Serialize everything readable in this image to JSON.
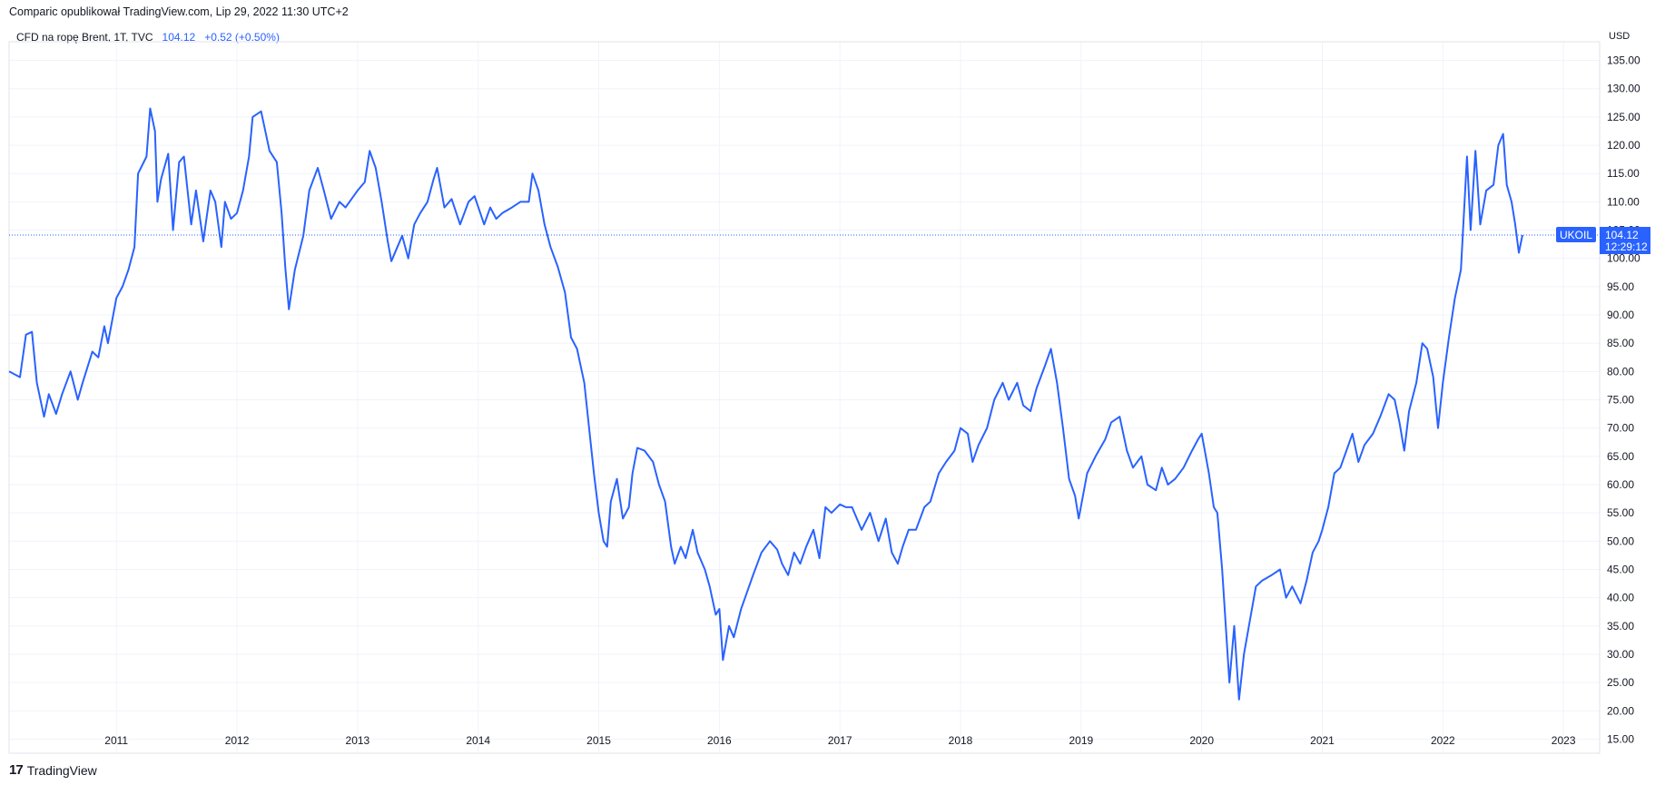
{
  "header": {
    "published": "Comparic opublikował TradingView.com, Lip 29, 2022 11:30 UTC+2",
    "symbol": "CFD na ropę Brent, 1T, TVC",
    "last": "104.12",
    "change": "+0.52 (+0.50%)",
    "currency": "USD"
  },
  "tag": {
    "symbol": "UKOIL",
    "price": "104.12",
    "countdown": "12:29:12"
  },
  "footer": {
    "brand": "TradingView",
    "icon": "tradingview-logo-icon"
  },
  "colors": {
    "line": "#2962ff",
    "grid": "#f0f3fa",
    "tag_bg": "#2962ff",
    "text": "#131722"
  },
  "chart_data": {
    "type": "line",
    "series_color": "#2962ff",
    "xlim": [
      2010.11,
      2023.3
    ],
    "ylim": [
      12.5,
      138.3
    ],
    "x_ticks": [
      "2011",
      "2012",
      "2013",
      "2014",
      "2015",
      "2016",
      "2017",
      "2018",
      "2019",
      "2020",
      "2021",
      "2022",
      "2023"
    ],
    "y_ticks": [
      "15.00",
      "20.00",
      "25.00",
      "30.00",
      "35.00",
      "40.00",
      "45.00",
      "50.00",
      "55.00",
      "60.00",
      "65.00",
      "70.00",
      "75.00",
      "80.00",
      "85.00",
      "90.00",
      "95.00",
      "100.00",
      "105.00",
      "110.00",
      "115.00",
      "120.00",
      "125.00",
      "130.00",
      "135.00"
    ],
    "last_value": 104.12,
    "points": [
      [
        2010.11,
        80.0
      ],
      [
        2010.2,
        79.0
      ],
      [
        2010.25,
        86.5
      ],
      [
        2010.3,
        87.0
      ],
      [
        2010.34,
        78.0
      ],
      [
        2010.4,
        72.0
      ],
      [
        2010.44,
        76.0
      ],
      [
        2010.5,
        72.5
      ],
      [
        2010.55,
        76.0
      ],
      [
        2010.62,
        80.0
      ],
      [
        2010.68,
        75.0
      ],
      [
        2010.72,
        78.0
      ],
      [
        2010.8,
        83.5
      ],
      [
        2010.85,
        82.5
      ],
      [
        2010.9,
        88.0
      ],
      [
        2010.93,
        85.0
      ],
      [
        2011.0,
        93.0
      ],
      [
        2011.05,
        95.0
      ],
      [
        2011.1,
        98.0
      ],
      [
        2011.15,
        102.0
      ],
      [
        2011.18,
        115.0
      ],
      [
        2011.25,
        118.0
      ],
      [
        2011.28,
        126.5
      ],
      [
        2011.32,
        122.5
      ],
      [
        2011.34,
        110.0
      ],
      [
        2011.37,
        114.0
      ],
      [
        2011.43,
        118.5
      ],
      [
        2011.47,
        105.0
      ],
      [
        2011.52,
        117.0
      ],
      [
        2011.56,
        118.0
      ],
      [
        2011.62,
        106.0
      ],
      [
        2011.66,
        112.0
      ],
      [
        2011.72,
        103.0
      ],
      [
        2011.78,
        112.0
      ],
      [
        2011.82,
        110.0
      ],
      [
        2011.87,
        102.0
      ],
      [
        2011.9,
        110.0
      ],
      [
        2011.95,
        107.0
      ],
      [
        2012.0,
        108.0
      ],
      [
        2012.05,
        112.0
      ],
      [
        2012.1,
        118.0
      ],
      [
        2012.13,
        125.0
      ],
      [
        2012.2,
        126.0
      ],
      [
        2012.27,
        119.0
      ],
      [
        2012.33,
        117.0
      ],
      [
        2012.37,
        108.0
      ],
      [
        2012.4,
        98.5
      ],
      [
        2012.43,
        91.0
      ],
      [
        2012.48,
        98.0
      ],
      [
        2012.55,
        104.0
      ],
      [
        2012.6,
        112.0
      ],
      [
        2012.67,
        116.0
      ],
      [
        2012.72,
        112.0
      ],
      [
        2012.78,
        107.0
      ],
      [
        2012.85,
        110.0
      ],
      [
        2012.9,
        109.0
      ],
      [
        2012.95,
        110.5
      ],
      [
        2013.0,
        112.0
      ],
      [
        2013.06,
        113.5
      ],
      [
        2013.1,
        119.0
      ],
      [
        2013.15,
        116.0
      ],
      [
        2013.2,
        110.0
      ],
      [
        2013.25,
        103.0
      ],
      [
        2013.28,
        99.5
      ],
      [
        2013.33,
        102.0
      ],
      [
        2013.37,
        104.0
      ],
      [
        2013.42,
        100.0
      ],
      [
        2013.47,
        106.0
      ],
      [
        2013.52,
        108.0
      ],
      [
        2013.58,
        110.0
      ],
      [
        2013.63,
        114.0
      ],
      [
        2013.66,
        116.0
      ],
      [
        2013.72,
        109.0
      ],
      [
        2013.78,
        110.5
      ],
      [
        2013.85,
        106.0
      ],
      [
        2013.92,
        110.0
      ],
      [
        2013.97,
        111.0
      ],
      [
        2014.05,
        106.0
      ],
      [
        2014.1,
        109.0
      ],
      [
        2014.15,
        107.0
      ],
      [
        2014.2,
        108.0
      ],
      [
        2014.28,
        109.0
      ],
      [
        2014.35,
        110.0
      ],
      [
        2014.42,
        110.0
      ],
      [
        2014.45,
        115.0
      ],
      [
        2014.5,
        112.0
      ],
      [
        2014.55,
        106.0
      ],
      [
        2014.6,
        102.0
      ],
      [
        2014.66,
        98.5
      ],
      [
        2014.72,
        94.0
      ],
      [
        2014.77,
        86.0
      ],
      [
        2014.82,
        84.0
      ],
      [
        2014.88,
        78.0
      ],
      [
        2014.92,
        70.0
      ],
      [
        2014.96,
        62.0
      ],
      [
        2015.0,
        55.0
      ],
      [
        2015.04,
        50.0
      ],
      [
        2015.07,
        49.0
      ],
      [
        2015.1,
        57.0
      ],
      [
        2015.15,
        61.0
      ],
      [
        2015.2,
        54.0
      ],
      [
        2015.25,
        56.0
      ],
      [
        2015.28,
        62.0
      ],
      [
        2015.32,
        66.5
      ],
      [
        2015.38,
        66.0
      ],
      [
        2015.45,
        64.0
      ],
      [
        2015.5,
        60.0
      ],
      [
        2015.55,
        57.0
      ],
      [
        2015.6,
        49.0
      ],
      [
        2015.63,
        46.0
      ],
      [
        2015.68,
        49.0
      ],
      [
        2015.72,
        47.0
      ],
      [
        2015.78,
        52.0
      ],
      [
        2015.82,
        48.0
      ],
      [
        2015.88,
        45.0
      ],
      [
        2015.92,
        42.0
      ],
      [
        2015.97,
        37.0
      ],
      [
        2016.0,
        38.0
      ],
      [
        2016.03,
        29.0
      ],
      [
        2016.08,
        35.0
      ],
      [
        2016.12,
        33.0
      ],
      [
        2016.18,
        38.0
      ],
      [
        2016.23,
        41.0
      ],
      [
        2016.28,
        44.0
      ],
      [
        2016.35,
        48.0
      ],
      [
        2016.42,
        50.0
      ],
      [
        2016.48,
        48.5
      ],
      [
        2016.52,
        46.0
      ],
      [
        2016.57,
        44.0
      ],
      [
        2016.62,
        48.0
      ],
      [
        2016.67,
        46.0
      ],
      [
        2016.72,
        49.0
      ],
      [
        2016.78,
        52.0
      ],
      [
        2016.83,
        47.0
      ],
      [
        2016.88,
        56.0
      ],
      [
        2016.93,
        55.0
      ],
      [
        2017.0,
        56.5
      ],
      [
        2017.05,
        56.0
      ],
      [
        2017.1,
        56.0
      ],
      [
        2017.18,
        52.0
      ],
      [
        2017.25,
        55.0
      ],
      [
        2017.32,
        50.0
      ],
      [
        2017.38,
        54.0
      ],
      [
        2017.43,
        48.0
      ],
      [
        2017.48,
        46.0
      ],
      [
        2017.52,
        49.0
      ],
      [
        2017.57,
        52.0
      ],
      [
        2017.63,
        52.0
      ],
      [
        2017.7,
        56.0
      ],
      [
        2017.75,
        57.0
      ],
      [
        2017.82,
        62.0
      ],
      [
        2017.88,
        64.0
      ],
      [
        2017.95,
        66.0
      ],
      [
        2018.0,
        70.0
      ],
      [
        2018.06,
        69.0
      ],
      [
        2018.1,
        64.0
      ],
      [
        2018.15,
        67.0
      ],
      [
        2018.22,
        70.0
      ],
      [
        2018.28,
        75.0
      ],
      [
        2018.35,
        78.0
      ],
      [
        2018.4,
        75.0
      ],
      [
        2018.47,
        78.0
      ],
      [
        2018.52,
        74.0
      ],
      [
        2018.58,
        73.0
      ],
      [
        2018.63,
        77.0
      ],
      [
        2018.7,
        81.0
      ],
      [
        2018.75,
        84.0
      ],
      [
        2018.8,
        78.0
      ],
      [
        2018.85,
        70.0
      ],
      [
        2018.9,
        61.0
      ],
      [
        2018.95,
        58.0
      ],
      [
        2018.98,
        54.0
      ],
      [
        2019.05,
        62.0
      ],
      [
        2019.12,
        65.0
      ],
      [
        2019.2,
        68.0
      ],
      [
        2019.25,
        71.0
      ],
      [
        2019.32,
        72.0
      ],
      [
        2019.38,
        66.0
      ],
      [
        2019.43,
        63.0
      ],
      [
        2019.5,
        65.0
      ],
      [
        2019.55,
        60.0
      ],
      [
        2019.62,
        59.0
      ],
      [
        2019.67,
        63.0
      ],
      [
        2019.72,
        60.0
      ],
      [
        2019.78,
        61.0
      ],
      [
        2019.85,
        63.0
      ],
      [
        2019.92,
        66.0
      ],
      [
        2019.97,
        68.0
      ],
      [
        2020.0,
        69.0
      ],
      [
        2020.06,
        62.0
      ],
      [
        2020.1,
        56.0
      ],
      [
        2020.13,
        55.0
      ],
      [
        2020.17,
        45.0
      ],
      [
        2020.2,
        35.0
      ],
      [
        2020.23,
        25.0
      ],
      [
        2020.27,
        35.0
      ],
      [
        2020.31,
        22.0
      ],
      [
        2020.35,
        30.0
      ],
      [
        2020.4,
        36.0
      ],
      [
        2020.45,
        42.0
      ],
      [
        2020.5,
        43.0
      ],
      [
        2020.58,
        44.0
      ],
      [
        2020.65,
        45.0
      ],
      [
        2020.7,
        40.0
      ],
      [
        2020.75,
        42.0
      ],
      [
        2020.82,
        39.0
      ],
      [
        2020.87,
        43.0
      ],
      [
        2020.92,
        48.0
      ],
      [
        2020.97,
        50.0
      ],
      [
        2021.0,
        52.0
      ],
      [
        2021.05,
        56.0
      ],
      [
        2021.1,
        62.0
      ],
      [
        2021.15,
        63.0
      ],
      [
        2021.2,
        66.0
      ],
      [
        2021.25,
        69.0
      ],
      [
        2021.3,
        64.0
      ],
      [
        2021.35,
        67.0
      ],
      [
        2021.42,
        69.0
      ],
      [
        2021.48,
        72.0
      ],
      [
        2021.55,
        76.0
      ],
      [
        2021.6,
        75.0
      ],
      [
        2021.64,
        71.0
      ],
      [
        2021.68,
        66.0
      ],
      [
        2021.72,
        73.0
      ],
      [
        2021.78,
        78.0
      ],
      [
        2021.83,
        85.0
      ],
      [
        2021.87,
        84.0
      ],
      [
        2021.92,
        79.0
      ],
      [
        2021.96,
        70.0
      ],
      [
        2022.0,
        78.0
      ],
      [
        2022.05,
        86.0
      ],
      [
        2022.1,
        93.0
      ],
      [
        2022.15,
        98.0
      ],
      [
        2022.2,
        118.0
      ],
      [
        2022.23,
        105.0
      ],
      [
        2022.27,
        119.0
      ],
      [
        2022.31,
        106.0
      ],
      [
        2022.36,
        112.0
      ],
      [
        2022.42,
        113.0
      ],
      [
        2022.46,
        120.0
      ],
      [
        2022.5,
        122.0
      ],
      [
        2022.53,
        113.0
      ],
      [
        2022.57,
        110.0
      ],
      [
        2022.6,
        106.0
      ],
      [
        2022.63,
        101.0
      ],
      [
        2022.66,
        104.12
      ]
    ]
  }
}
